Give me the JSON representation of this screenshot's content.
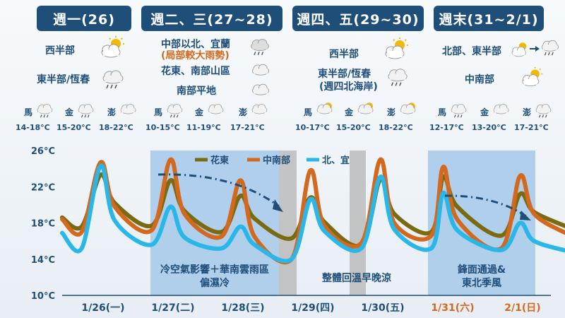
{
  "headers": [
    {
      "label": "週一(26)"
    },
    {
      "label": "週二、三(27~28)"
    },
    {
      "label": "週四、五(29~30)"
    },
    {
      "label": "週末(31~2/1)"
    }
  ],
  "regions": {
    "mon_west": "西半部",
    "mon_east": "東半部/恆春",
    "tuewed_north": "中部以北、宜蘭",
    "tuewed_north_note": "(局部較大雨勢)",
    "tuewed_east": "花東、南部山區",
    "tuewed_south": "南部平地",
    "thufri_west": "西半部",
    "thufri_east": "東半部/恆春",
    "thufri_east_note": "(週四北海岸)",
    "weekend_north": "北部、東半部",
    "weekend_south": "中南部"
  },
  "stations": [
    {
      "name": "馬",
      "temp": "14-18°C"
    },
    {
      "name": "金",
      "temp": "15-20°C"
    },
    {
      "name": "澎",
      "temp": "18-22°C"
    },
    {
      "name": "馬",
      "temp": "10-15°C"
    },
    {
      "name": "金",
      "temp": "11-19°C"
    },
    {
      "name": "澎",
      "temp": "17-21°C"
    },
    {
      "name": "馬",
      "temp": "10-17°C"
    },
    {
      "name": "金",
      "temp": "15-20°C"
    },
    {
      "name": "澎",
      "temp": "18-22°C"
    },
    {
      "name": "馬",
      "temp": "12-17°C"
    },
    {
      "name": "金",
      "temp": "13-20°C"
    },
    {
      "name": "澎",
      "temp": "17-21°C"
    }
  ],
  "colors": {
    "header_bg": "#1f4e79",
    "hualien": "#7a6a12",
    "central_south": "#d2691e",
    "north_yilan": "#29b6e8",
    "shade": "#a9cbea",
    "shade_gray": "#b8b8b8",
    "date_normal": "#1f4e79",
    "date_weekend": "#d2691e"
  },
  "chart_data": {
    "type": "line",
    "ylim": [
      10,
      26
    ],
    "y_ticks": [
      "26°C",
      "22°C",
      "18°C",
      "14°C",
      "10°C"
    ],
    "x_labels": [
      {
        "label": "1/26(一)",
        "weekend": false
      },
      {
        "label": "1/27(二)",
        "weekend": false
      },
      {
        "label": "1/28(三)",
        "weekend": false
      },
      {
        "label": "1/29(四)",
        "weekend": false
      },
      {
        "label": "1/30(五)",
        "weekend": false
      },
      {
        "label": "1/31(六)",
        "weekend": true
      },
      {
        "label": "2/1(日)",
        "weekend": true
      }
    ],
    "legend": [
      "花東",
      "中南部",
      "北、宜"
    ],
    "annotations": [
      {
        "lines": [
          "冷空氣影響＋華南雲雨區",
          "偏濕冷"
        ]
      },
      {
        "lines": [
          "整體回溫早晚涼"
        ]
      },
      {
        "lines": [
          "鋒面通過&",
          "東北季風"
        ]
      }
    ],
    "series": [
      {
        "name": "花東",
        "points": [
          [
            1.0,
            18.6
          ],
          [
            1.28,
            17.6
          ],
          [
            1.55,
            23.3
          ],
          [
            1.75,
            20.2
          ],
          [
            2.28,
            17.7
          ],
          [
            2.55,
            22.7
          ],
          [
            2.75,
            19.3
          ],
          [
            3.28,
            17.0
          ],
          [
            3.55,
            21.0
          ],
          [
            3.75,
            18.5
          ],
          [
            4.28,
            16.3
          ],
          [
            4.55,
            20.8
          ],
          [
            4.75,
            18.1
          ],
          [
            5.28,
            15.6
          ],
          [
            5.55,
            22.8
          ],
          [
            5.75,
            19.0
          ],
          [
            6.28,
            17.0
          ],
          [
            6.45,
            23.1
          ],
          [
            6.65,
            19.8
          ],
          [
            7.28,
            16.6
          ],
          [
            7.55,
            21.2
          ],
          [
            7.75,
            19.2
          ],
          [
            8.28,
            17.4
          ]
        ]
      },
      {
        "name": "中南部",
        "points": [
          [
            1.0,
            18.4
          ],
          [
            1.28,
            17.0
          ],
          [
            1.55,
            24.7
          ],
          [
            1.75,
            19.8
          ],
          [
            2.28,
            17.2
          ],
          [
            2.55,
            25.0
          ],
          [
            2.75,
            19.0
          ],
          [
            3.28,
            16.5
          ],
          [
            3.55,
            22.7
          ],
          [
            3.75,
            16.5
          ],
          [
            4.28,
            14.0
          ],
          [
            4.55,
            23.8
          ],
          [
            4.75,
            17.7
          ],
          [
            5.28,
            15.8
          ],
          [
            5.55,
            25.0
          ],
          [
            5.75,
            18.0
          ],
          [
            6.28,
            16.6
          ],
          [
            6.45,
            24.2
          ],
          [
            6.65,
            18.4
          ],
          [
            7.28,
            15.2
          ],
          [
            7.55,
            23.2
          ],
          [
            7.75,
            19.0
          ],
          [
            8.28,
            16.6
          ]
        ]
      },
      {
        "name": "北、宜",
        "points": [
          [
            1.0,
            16.9
          ],
          [
            1.28,
            15.2
          ],
          [
            1.55,
            24.3
          ],
          [
            1.75,
            18.3
          ],
          [
            2.28,
            15.6
          ],
          [
            2.55,
            19.8
          ],
          [
            2.75,
            16.4
          ],
          [
            3.28,
            15.2
          ],
          [
            3.55,
            17.6
          ],
          [
            3.75,
            15.6
          ],
          [
            4.28,
            14.0
          ],
          [
            4.55,
            20.6
          ],
          [
            4.75,
            17.1
          ],
          [
            5.28,
            15.2
          ],
          [
            5.55,
            23.1
          ],
          [
            5.75,
            17.3
          ],
          [
            6.28,
            15.2
          ],
          [
            6.45,
            21.3
          ],
          [
            6.65,
            17.2
          ],
          [
            7.28,
            15.0
          ],
          [
            7.55,
            18.0
          ],
          [
            7.75,
            16.0
          ],
          [
            8.28,
            14.8
          ]
        ]
      }
    ]
  }
}
